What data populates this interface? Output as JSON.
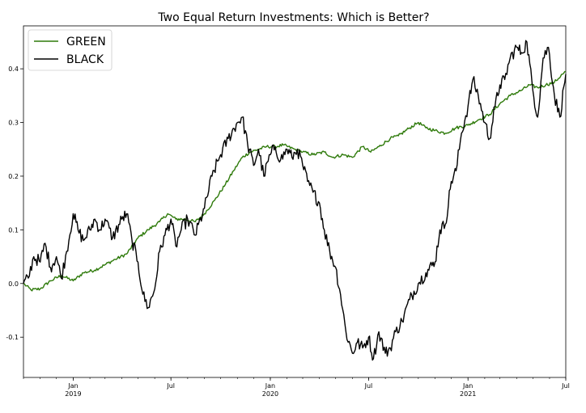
{
  "chart_data": {
    "type": "line",
    "title": "Two Equal Return Investments: Which is Better?",
    "xlabel": "",
    "ylabel": "",
    "x_range": [
      "2018-10-01",
      "2021-07-01"
    ],
    "ylim": [
      -0.175,
      0.48
    ],
    "y_ticks": [
      -0.1,
      0.0,
      0.1,
      0.2,
      0.3,
      0.4
    ],
    "y_tick_labels": [
      "-0.1",
      "0.0",
      "0.1",
      "0.2",
      "0.3",
      "0.4"
    ],
    "x_ticks": [
      {
        "date": "2019-01-01",
        "label": "Jan",
        "sublabel": "2019"
      },
      {
        "date": "2019-07-01",
        "label": "Jul",
        "sublabel": ""
      },
      {
        "date": "2020-01-01",
        "label": "Jan",
        "sublabel": "2020"
      },
      {
        "date": "2020-07-01",
        "label": "Jul",
        "sublabel": ""
      },
      {
        "date": "2021-01-01",
        "label": "Jan",
        "sublabel": "2021"
      },
      {
        "date": "2021-07-01",
        "label": "Jul",
        "sublabel": ""
      }
    ],
    "grid": false,
    "legend": "top-left",
    "series": [
      {
        "name": "GREEN",
        "color": "#2e7a0a",
        "points": [
          [
            "2018-10-01",
            0.0
          ],
          [
            "2018-10-15",
            -0.012
          ],
          [
            "2018-11-01",
            -0.01
          ],
          [
            "2018-11-20",
            0.005
          ],
          [
            "2018-12-10",
            0.015
          ],
          [
            "2019-01-01",
            0.005
          ],
          [
            "2019-01-20",
            0.02
          ],
          [
            "2019-02-10",
            0.025
          ],
          [
            "2019-03-01",
            0.035
          ],
          [
            "2019-03-20",
            0.045
          ],
          [
            "2019-04-10",
            0.055
          ],
          [
            "2019-05-01",
            0.085
          ],
          [
            "2019-05-20",
            0.1
          ],
          [
            "2019-06-10",
            0.115
          ],
          [
            "2019-06-25",
            0.13
          ],
          [
            "2019-07-10",
            0.12
          ],
          [
            "2019-07-25",
            0.12
          ],
          [
            "2019-08-15",
            0.115
          ],
          [
            "2019-09-01",
            0.13
          ],
          [
            "2019-09-20",
            0.155
          ],
          [
            "2019-10-10",
            0.185
          ],
          [
            "2019-10-25",
            0.21
          ],
          [
            "2019-11-10",
            0.235
          ],
          [
            "2019-11-25",
            0.245
          ],
          [
            "2019-12-10",
            0.25
          ],
          [
            "2019-12-25",
            0.255
          ],
          [
            "2020-01-10",
            0.255
          ],
          [
            "2020-01-25",
            0.258
          ],
          [
            "2020-02-15",
            0.25
          ],
          [
            "2020-03-01",
            0.245
          ],
          [
            "2020-03-20",
            0.24
          ],
          [
            "2020-04-10",
            0.245
          ],
          [
            "2020-04-25",
            0.235
          ],
          [
            "2020-05-15",
            0.24
          ],
          [
            "2020-06-01",
            0.235
          ],
          [
            "2020-06-20",
            0.255
          ],
          [
            "2020-07-05",
            0.245
          ],
          [
            "2020-07-20",
            0.255
          ],
          [
            "2020-08-10",
            0.27
          ],
          [
            "2020-08-25",
            0.275
          ],
          [
            "2020-09-15",
            0.29
          ],
          [
            "2020-10-01",
            0.3
          ],
          [
            "2020-10-15",
            0.29
          ],
          [
            "2020-11-01",
            0.285
          ],
          [
            "2020-11-20",
            0.28
          ],
          [
            "2020-12-10",
            0.29
          ],
          [
            "2021-01-01",
            0.295
          ],
          [
            "2021-01-20",
            0.305
          ],
          [
            "2021-02-10",
            0.315
          ],
          [
            "2021-03-01",
            0.335
          ],
          [
            "2021-03-20",
            0.35
          ],
          [
            "2021-04-10",
            0.36
          ],
          [
            "2021-04-25",
            0.37
          ],
          [
            "2021-05-10",
            0.365
          ],
          [
            "2021-05-25",
            0.37
          ],
          [
            "2021-06-10",
            0.375
          ],
          [
            "2021-06-25",
            0.39
          ],
          [
            "2021-07-01",
            0.395
          ]
        ]
      },
      {
        "name": "BLACK",
        "color": "#000000",
        "points": [
          [
            "2018-10-01",
            0.0
          ],
          [
            "2018-10-10",
            0.01
          ],
          [
            "2018-10-20",
            0.05
          ],
          [
            "2018-11-01",
            0.04
          ],
          [
            "2018-11-10",
            0.075
          ],
          [
            "2018-11-20",
            0.03
          ],
          [
            "2018-12-01",
            0.05
          ],
          [
            "2018-12-10",
            0.01
          ],
          [
            "2018-12-20",
            0.06
          ],
          [
            "2019-01-01",
            0.13
          ],
          [
            "2019-01-10",
            0.1
          ],
          [
            "2019-01-20",
            0.08
          ],
          [
            "2019-02-01",
            0.1
          ],
          [
            "2019-02-10",
            0.12
          ],
          [
            "2019-02-20",
            0.1
          ],
          [
            "2019-03-01",
            0.12
          ],
          [
            "2019-03-15",
            0.085
          ],
          [
            "2019-04-01",
            0.12
          ],
          [
            "2019-04-10",
            0.13
          ],
          [
            "2019-04-20",
            0.08
          ],
          [
            "2019-05-01",
            0.04
          ],
          [
            "2019-05-10",
            -0.02
          ],
          [
            "2019-05-20",
            -0.045
          ],
          [
            "2019-06-01",
            -0.01
          ],
          [
            "2019-06-10",
            0.06
          ],
          [
            "2019-06-20",
            0.09
          ],
          [
            "2019-07-01",
            0.12
          ],
          [
            "2019-07-10",
            0.07
          ],
          [
            "2019-07-20",
            0.1
          ],
          [
            "2019-08-01",
            0.12
          ],
          [
            "2019-08-15",
            0.09
          ],
          [
            "2019-09-01",
            0.14
          ],
          [
            "2019-09-15",
            0.2
          ],
          [
            "2019-10-01",
            0.24
          ],
          [
            "2019-10-15",
            0.27
          ],
          [
            "2019-11-01",
            0.3
          ],
          [
            "2019-11-10",
            0.31
          ],
          [
            "2019-11-20",
            0.26
          ],
          [
            "2019-12-01",
            0.22
          ],
          [
            "2019-12-10",
            0.25
          ],
          [
            "2019-12-20",
            0.2
          ],
          [
            "2020-01-01",
            0.24
          ],
          [
            "2020-01-10",
            0.255
          ],
          [
            "2020-01-20",
            0.23
          ],
          [
            "2020-02-01",
            0.25
          ],
          [
            "2020-02-10",
            0.235
          ],
          [
            "2020-02-20",
            0.25
          ],
          [
            "2020-03-01",
            0.22
          ],
          [
            "2020-03-10",
            0.19
          ],
          [
            "2020-03-20",
            0.17
          ],
          [
            "2020-04-01",
            0.15
          ],
          [
            "2020-04-10",
            0.1
          ],
          [
            "2020-04-20",
            0.06
          ],
          [
            "2020-05-01",
            0.03
          ],
          [
            "2020-05-10",
            -0.02
          ],
          [
            "2020-05-20",
            -0.09
          ],
          [
            "2020-06-01",
            -0.13
          ],
          [
            "2020-06-10",
            -0.11
          ],
          [
            "2020-06-20",
            -0.12
          ],
          [
            "2020-07-01",
            -0.1
          ],
          [
            "2020-07-10",
            -0.14
          ],
          [
            "2020-07-20",
            -0.09
          ],
          [
            "2020-08-01",
            -0.13
          ],
          [
            "2020-08-10",
            -0.12
          ],
          [
            "2020-08-20",
            -0.09
          ],
          [
            "2020-09-01",
            -0.07
          ],
          [
            "2020-09-15",
            -0.03
          ],
          [
            "2020-10-01",
            0.0
          ],
          [
            "2020-10-15",
            0.02
          ],
          [
            "2020-11-01",
            0.04
          ],
          [
            "2020-11-10",
            0.1
          ],
          [
            "2020-11-20",
            0.11
          ],
          [
            "2020-12-01",
            0.19
          ],
          [
            "2020-12-10",
            0.21
          ],
          [
            "2020-12-20",
            0.28
          ],
          [
            "2021-01-01",
            0.33
          ],
          [
            "2021-01-10",
            0.38
          ],
          [
            "2021-01-20",
            0.35
          ],
          [
            "2021-02-01",
            0.3
          ],
          [
            "2021-02-10",
            0.27
          ],
          [
            "2021-02-20",
            0.33
          ],
          [
            "2021-03-01",
            0.37
          ],
          [
            "2021-03-10",
            0.38
          ],
          [
            "2021-03-20",
            0.42
          ],
          [
            "2021-04-01",
            0.44
          ],
          [
            "2021-04-10",
            0.43
          ],
          [
            "2021-04-20",
            0.45
          ],
          [
            "2021-05-01",
            0.36
          ],
          [
            "2021-05-10",
            0.31
          ],
          [
            "2021-05-20",
            0.42
          ],
          [
            "2021-05-30",
            0.44
          ],
          [
            "2021-06-10",
            0.35
          ],
          [
            "2021-06-20",
            0.31
          ],
          [
            "2021-07-01",
            0.39
          ]
        ]
      }
    ]
  }
}
